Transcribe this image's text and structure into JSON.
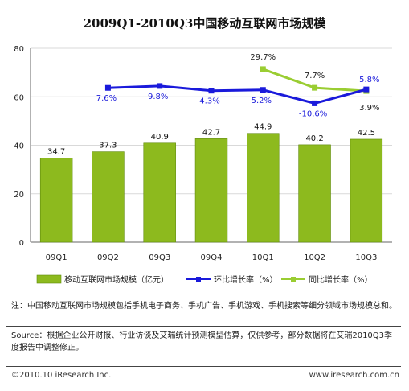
{
  "chart_data": {
    "type": "bar",
    "title": "2009Q1-2010Q3中国移动互联网市场规模",
    "categories": [
      "09Q1",
      "09Q2",
      "09Q3",
      "09Q4",
      "10Q1",
      "10Q2",
      "10Q3"
    ],
    "ylim": [
      0,
      80
    ],
    "yticks": [
      "0",
      "20",
      "40",
      "60",
      "80"
    ],
    "grid": true,
    "legend_position": "bottom",
    "colors": {
      "bar": "#8dba1e",
      "qoq": "#1a1adb",
      "yoy": "#9acd32",
      "label": "#1a1adb"
    },
    "series": [
      {
        "name": "移动互联网市场规模（亿元）",
        "kind": "bar",
        "values": [
          34.7,
          37.3,
          40.9,
          42.7,
          44.9,
          40.2,
          42.5
        ],
        "labels": [
          "34.7",
          "37.3",
          "40.9",
          "42.7",
          "44.9",
          "40.2",
          "42.5"
        ]
      },
      {
        "name": "环比增长率（%）",
        "kind": "line",
        "values": [
          null,
          7.6,
          9.8,
          4.3,
          5.2,
          -10.6,
          5.8
        ],
        "labels": [
          null,
          "7.6%",
          "9.8%",
          "4.3%",
          "5.2%",
          "-10.6%",
          "5.8%"
        ]
      },
      {
        "name": "同比增长率（%）",
        "kind": "line",
        "values": [
          null,
          null,
          null,
          null,
          29.7,
          7.7,
          3.9
        ],
        "labels": [
          null,
          null,
          null,
          null,
          "29.7%",
          "7.7%",
          "3.9%"
        ]
      }
    ]
  },
  "note": "注：中国移动互联网市场规模包括手机电子商务、手机广告、手机游戏、手机搜索等细分领域市场规模总和。",
  "source": "Source：根据企业公开财报、行业访谈及艾瑞统计预测模型估算，仅供参考，部分数据将在艾瑞2010Q3季度报告中调整修正。",
  "copyright": "©2010.10 iResearch Inc.",
  "website": "www.iresearch.com.cn"
}
